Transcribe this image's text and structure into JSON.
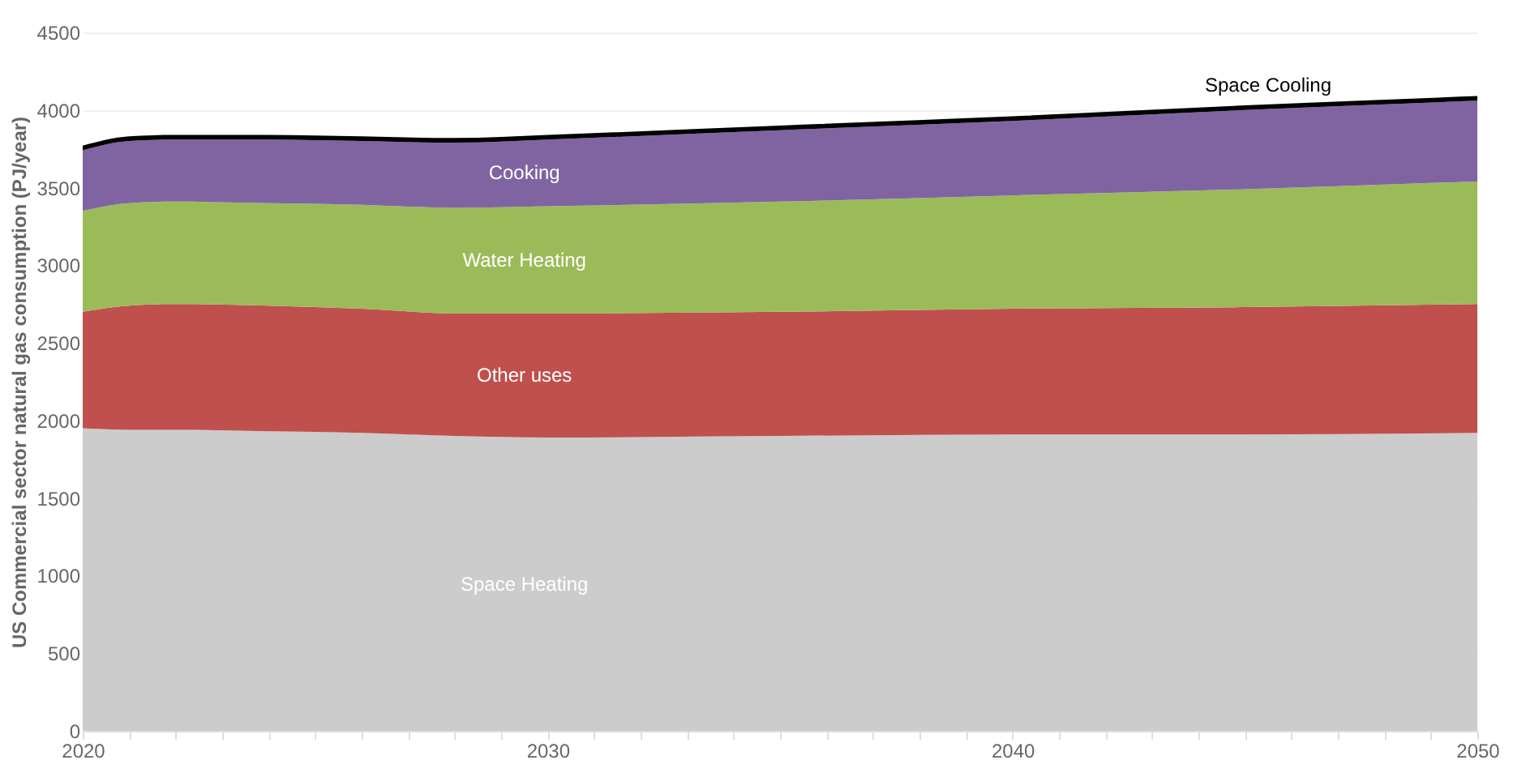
{
  "chart_data": {
    "type": "area",
    "stacked": true,
    "ylabel": "US Commercial sector natural gas consumption (PJ/year)",
    "x": [
      2020,
      2021,
      2022,
      2024,
      2026,
      2028,
      2030,
      2035,
      2040,
      2045,
      2050
    ],
    "series": [
      {
        "name": "Space Heating",
        "color": "#cccccc",
        "values": [
          1950,
          1940,
          1940,
          1930,
          1920,
          1900,
          1890,
          1900,
          1910,
          1910,
          1920
        ]
      },
      {
        "name": "Other uses",
        "color": "#c0504d",
        "values": [
          750,
          800,
          810,
          810,
          800,
          790,
          800,
          800,
          810,
          820,
          830
        ]
      },
      {
        "name": "Water Heating",
        "color": "#9bbb59",
        "values": [
          650,
          660,
          660,
          660,
          670,
          680,
          690,
          710,
          730,
          760,
          790
        ]
      },
      {
        "name": "Cooking",
        "color": "#8064a2",
        "values": [
          390,
          400,
          400,
          410,
          410,
          420,
          430,
          460,
          480,
          510,
          520
        ]
      },
      {
        "name": "Space Cooling",
        "color": "#000000",
        "values": [
          30,
          30,
          30,
          30,
          30,
          30,
          30,
          30,
          30,
          30,
          30
        ]
      }
    ],
    "xlim": [
      2020,
      2050
    ],
    "xticks": [
      2020,
      {
        "value": 2021,
        "label": null
      },
      {
        "value": 2022,
        "label": null
      },
      {
        "value": 2023,
        "label": null
      },
      {
        "value": 2024,
        "label": null
      },
      {
        "value": 2025,
        "label": null
      },
      {
        "value": 2026,
        "label": null
      },
      {
        "value": 2027,
        "label": null
      },
      {
        "value": 2028,
        "label": null
      },
      {
        "value": 2029,
        "label": null
      },
      2030,
      {
        "value": 2031,
        "label": null
      },
      {
        "value": 2032,
        "label": null
      },
      {
        "value": 2033,
        "label": null
      },
      {
        "value": 2034,
        "label": null
      },
      {
        "value": 2035,
        "label": null
      },
      {
        "value": 2036,
        "label": null
      },
      {
        "value": 2037,
        "label": null
      },
      {
        "value": 2038,
        "label": null
      },
      {
        "value": 2039,
        "label": null
      },
      2040,
      {
        "value": 2041,
        "label": null
      },
      {
        "value": 2042,
        "label": null
      },
      {
        "value": 2043,
        "label": null
      },
      {
        "value": 2044,
        "label": null
      },
      {
        "value": 2045,
        "label": null
      },
      {
        "value": 2046,
        "label": null
      },
      {
        "value": 2047,
        "label": null
      },
      {
        "value": 2048,
        "label": null
      },
      {
        "value": 2049,
        "label": null
      },
      2050
    ],
    "ylim": [
      0,
      4500
    ],
    "yticks": [
      0,
      500,
      1000,
      1500,
      2000,
      2500,
      3000,
      3500,
      4000,
      4500
    ],
    "grid": "y",
    "legend": false
  }
}
